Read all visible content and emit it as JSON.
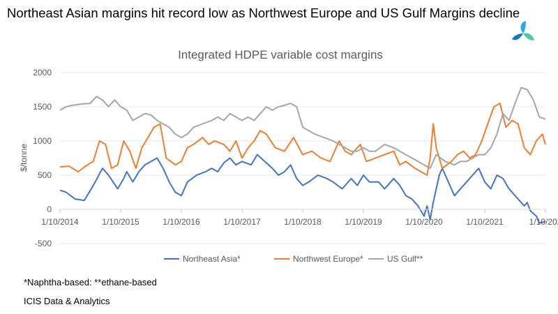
{
  "headline": "Northeast Asian margins hit record low as Northwest Europe and US Gulf Margins decline",
  "logo": {
    "icon": "icis-logo-icon",
    "colors": [
      "#2aa9df",
      "#54c3b0",
      "#1b75bb"
    ]
  },
  "footnote": "*Naphtha-based: **ethane-based",
  "source": "ICIS Data & Analytics",
  "chart_data": {
    "type": "line",
    "title": "Integrated HDPE variable cost margins",
    "xlabel": "",
    "ylabel": "$/tonne",
    "ylim": [
      -500,
      2000
    ],
    "yticks": [
      -500,
      0,
      500,
      1000,
      1500,
      2000
    ],
    "xlim": [
      2014.0,
      2022.0
    ],
    "xtick_positions": [
      2014,
      2015,
      2016,
      2017,
      2018,
      2019,
      2020,
      2021,
      2022
    ],
    "xtick_labels": [
      "1/10/2014",
      "1/10/2015",
      "1/10/2016",
      "1/10/2017",
      "1/10/2018",
      "1/10/2019",
      "1/10/2020",
      "1/10/2021",
      "1/10/202"
    ],
    "grid": true,
    "legend": "bottom",
    "series": [
      {
        "name": "Northeast Asia*",
        "color": "#4472c4",
        "x": [
          2014.0,
          2014.1,
          2014.25,
          2014.4,
          2014.55,
          2014.7,
          2014.8,
          2014.95,
          2015.05,
          2015.1,
          2015.2,
          2015.3,
          2015.4,
          2015.5,
          2015.6,
          2015.7,
          2015.8,
          2015.9,
          2016.0,
          2016.1,
          2016.25,
          2016.4,
          2016.5,
          2016.6,
          2016.7,
          2016.8,
          2016.9,
          2017.0,
          2017.15,
          2017.25,
          2017.35,
          2017.5,
          2017.6,
          2017.7,
          2017.8,
          2017.9,
          2018.0,
          2018.1,
          2018.25,
          2018.4,
          2018.5,
          2018.65,
          2018.8,
          2018.9,
          2019.0,
          2019.1,
          2019.25,
          2019.35,
          2019.5,
          2019.6,
          2019.7,
          2019.8,
          2019.9,
          2020.0,
          2020.05,
          2020.1,
          2020.15,
          2020.25,
          2020.3,
          2020.4,
          2020.5,
          2020.6,
          2020.7,
          2020.8,
          2020.9,
          2021.0,
          2021.1,
          2021.2,
          2021.3,
          2021.4,
          2021.5,
          2021.6,
          2021.65,
          2021.7,
          2021.75,
          2021.85,
          2021.9,
          2022.0
        ],
        "y": [
          280,
          250,
          150,
          130,
          350,
          600,
          500,
          300,
          450,
          550,
          400,
          550,
          650,
          700,
          750,
          600,
          400,
          250,
          200,
          400,
          500,
          550,
          600,
          550,
          680,
          750,
          650,
          700,
          650,
          800,
          720,
          600,
          500,
          550,
          650,
          450,
          350,
          400,
          500,
          450,
          400,
          300,
          450,
          350,
          500,
          400,
          400,
          300,
          450,
          350,
          200,
          150,
          50,
          -100,
          50,
          -150,
          100,
          500,
          600,
          400,
          200,
          300,
          400,
          500,
          600,
          400,
          300,
          500,
          450,
          300,
          200,
          100,
          50,
          100,
          -20,
          -100,
          -200,
          -180
        ]
      },
      {
        "name": "Northwest Europe*",
        "color": "#ed7d31",
        "x": [
          2014.0,
          2014.15,
          2014.3,
          2014.45,
          2014.55,
          2014.65,
          2014.75,
          2014.85,
          2014.95,
          2015.05,
          2015.15,
          2015.25,
          2015.35,
          2015.45,
          2015.55,
          2015.65,
          2015.75,
          2015.9,
          2016.0,
          2016.1,
          2016.2,
          2016.35,
          2016.45,
          2016.55,
          2016.7,
          2016.8,
          2016.9,
          2017.0,
          2017.1,
          2017.2,
          2017.3,
          2017.4,
          2017.55,
          2017.7,
          2017.85,
          2018.0,
          2018.15,
          2018.3,
          2018.45,
          2018.6,
          2018.7,
          2018.8,
          2018.95,
          2019.05,
          2019.2,
          2019.35,
          2019.5,
          2019.6,
          2019.7,
          2019.85,
          2019.95,
          2020.05,
          2020.1,
          2020.15,
          2020.2,
          2020.3,
          2020.45,
          2020.55,
          2020.65,
          2020.75,
          2020.85,
          2020.95,
          2021.05,
          2021.15,
          2021.25,
          2021.35,
          2021.45,
          2021.55,
          2021.65,
          2021.75,
          2021.85,
          2021.95,
          2022.0
        ],
        "y": [
          620,
          630,
          550,
          650,
          700,
          1000,
          950,
          600,
          650,
          1000,
          850,
          600,
          900,
          1050,
          1200,
          1250,
          750,
          650,
          700,
          900,
          950,
          1050,
          950,
          1000,
          950,
          850,
          1000,
          750,
          900,
          1000,
          1150,
          1100,
          900,
          850,
          1050,
          800,
          850,
          750,
          700,
          1000,
          850,
          800,
          950,
          700,
          750,
          800,
          850,
          650,
          700,
          600,
          550,
          500,
          750,
          1250,
          900,
          600,
          700,
          800,
          850,
          750,
          800,
          1000,
          1250,
          1500,
          1550,
          1200,
          1300,
          1250,
          900,
          800,
          1000,
          1100,
          950
        ]
      },
      {
        "name": "US Gulf**",
        "color": "#a5a5a5",
        "x": [
          2014.0,
          2014.1,
          2014.2,
          2014.35,
          2014.5,
          2014.6,
          2014.7,
          2014.8,
          2014.9,
          2015.0,
          2015.1,
          2015.2,
          2015.3,
          2015.4,
          2015.5,
          2015.6,
          2015.7,
          2015.8,
          2015.9,
          2016.0,
          2016.1,
          2016.2,
          2016.35,
          2016.5,
          2016.6,
          2016.7,
          2016.8,
          2016.9,
          2017.0,
          2017.1,
          2017.2,
          2017.3,
          2017.4,
          2017.5,
          2017.6,
          2017.7,
          2017.8,
          2017.9,
          2018.0,
          2018.1,
          2018.2,
          2018.35,
          2018.5,
          2018.6,
          2018.7,
          2018.8,
          2018.9,
          2019.0,
          2019.1,
          2019.2,
          2019.35,
          2019.5,
          2019.6,
          2019.7,
          2019.8,
          2019.9,
          2020.0,
          2020.1,
          2020.2,
          2020.35,
          2020.5,
          2020.6,
          2020.7,
          2020.8,
          2020.9,
          2021.0,
          2021.1,
          2021.2,
          2021.3,
          2021.4,
          2021.5,
          2021.6,
          2021.7,
          2021.8,
          2021.9,
          2022.0
        ],
        "y": [
          1450,
          1500,
          1520,
          1540,
          1550,
          1650,
          1600,
          1500,
          1600,
          1500,
          1450,
          1300,
          1350,
          1400,
          1380,
          1300,
          1250,
          1200,
          1100,
          1050,
          1100,
          1200,
          1250,
          1300,
          1350,
          1300,
          1400,
          1350,
          1300,
          1350,
          1300,
          1400,
          1500,
          1450,
          1500,
          1520,
          1550,
          1500,
          1200,
          1150,
          1100,
          1050,
          1000,
          950,
          900,
          850,
          850,
          900,
          850,
          850,
          950,
          900,
          850,
          800,
          750,
          700,
          650,
          600,
          800,
          700,
          650,
          700,
          700,
          750,
          800,
          800,
          900,
          1100,
          1400,
          1300,
          1550,
          1780,
          1750,
          1600,
          1350,
          1320
        ]
      }
    ]
  }
}
